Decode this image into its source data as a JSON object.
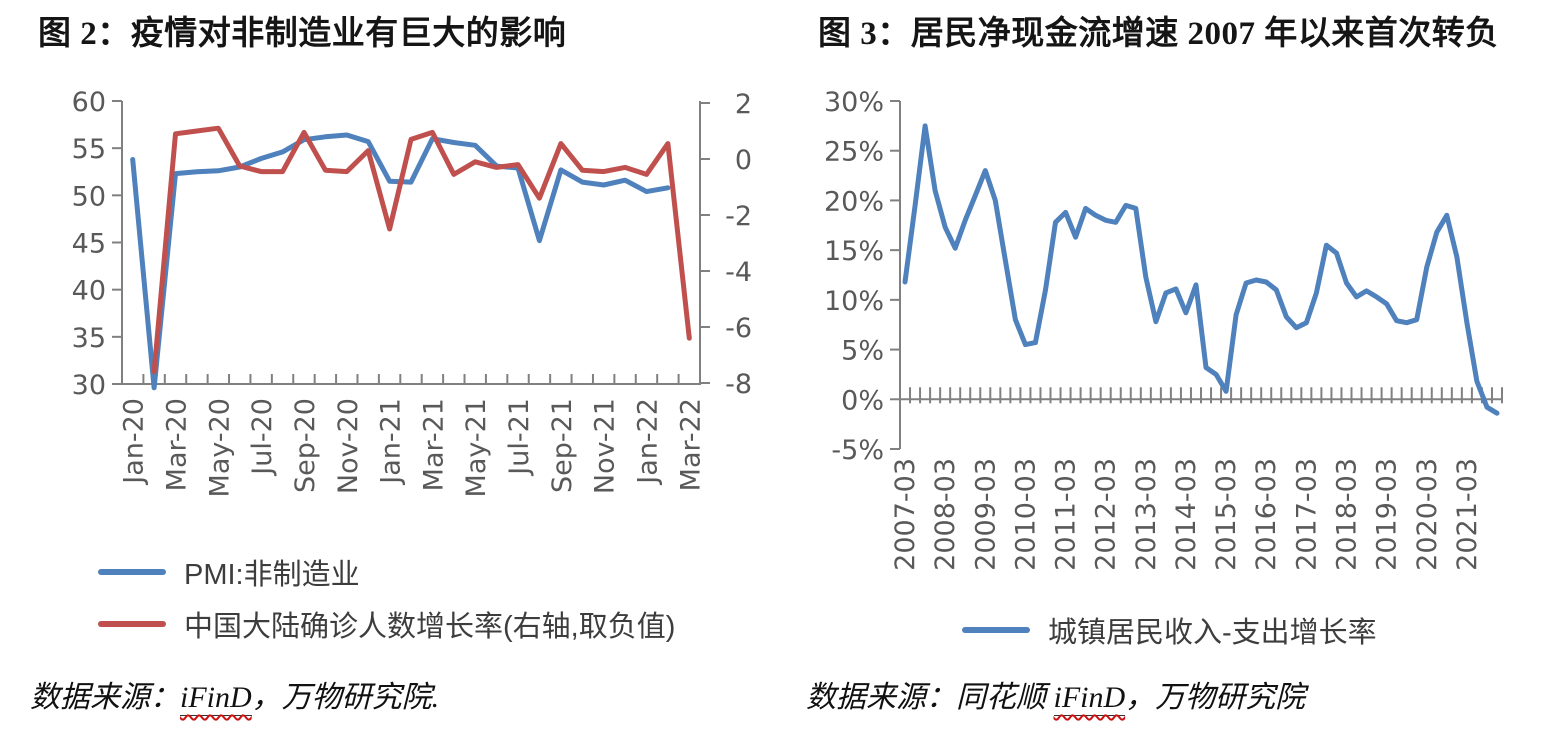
{
  "accent_colors": {
    "blue": "#4F81BD",
    "red": "#C0504D",
    "axis_gray": "#808080",
    "tick_text_gray": "#595959",
    "spellcheck_underline": "#cc1111"
  },
  "chart_data": [
    {
      "type": "line",
      "title": "图 2：疫情对非制造业有巨大的影响",
      "categories": [
        "Jan-20",
        "Feb-20",
        "Mar-20",
        "Apr-20",
        "May-20",
        "Jun-20",
        "Jul-20",
        "Aug-20",
        "Sep-20",
        "Oct-20",
        "Nov-20",
        "Dec-20",
        "Jan-21",
        "Feb-21",
        "Mar-21",
        "Apr-21",
        "May-21",
        "Jun-21",
        "Jul-21",
        "Aug-21",
        "Sep-21",
        "Oct-21",
        "Nov-21",
        "Dec-21",
        "Jan-22",
        "Feb-22",
        "Mar-22"
      ],
      "x_tick_labels": [
        "Jan-20",
        "Mar-20",
        "May-20",
        "Jul-20",
        "Sep-20",
        "Nov-20",
        "Jan-21",
        "Mar-21",
        "May-21",
        "Jul-21",
        "Sep-21",
        "Nov-21",
        "Jan-22",
        "Mar-22"
      ],
      "left_axis": {
        "min": 30,
        "max": 60,
        "tick_values": [
          60,
          55,
          50,
          45,
          40,
          35,
          30
        ],
        "tick_labels": [
          "60",
          "55",
          "50",
          "45",
          "40",
          "35",
          "30"
        ]
      },
      "right_axis": {
        "min": -8,
        "max": 2,
        "tick_values": [
          2,
          0,
          -2,
          -4,
          -6,
          -8
        ],
        "tick_labels": [
          "2",
          "0",
          "-2",
          "-4",
          "-6",
          "-8"
        ]
      },
      "grid": false,
      "legend_position": "bottom-left",
      "series": [
        {
          "name": "PMI:非制造业",
          "axis": "left",
          "color": "#4F81BD",
          "values": [
            53.8,
            29.6,
            52.3,
            52.5,
            52.6,
            53.0,
            53.9,
            54.6,
            55.9,
            56.2,
            56.4,
            55.7,
            51.5,
            51.4,
            56.0,
            55.6,
            55.3,
            53.1,
            52.9,
            45.2,
            52.7,
            51.4,
            51.1,
            51.6,
            50.4,
            50.8,
            null
          ]
        },
        {
          "name": "中国大陆确诊人数增长率(右轴,取负值)",
          "axis": "right",
          "color": "#C0504D",
          "values": [
            null,
            -7.6,
            0.9,
            1.0,
            1.1,
            -0.25,
            -0.45,
            -0.45,
            0.95,
            -0.4,
            -0.45,
            0.3,
            -2.5,
            0.7,
            0.95,
            -0.55,
            -0.1,
            -0.3,
            -0.2,
            -1.4,
            0.55,
            -0.4,
            -0.45,
            -0.3,
            -0.55,
            0.55,
            -6.4
          ]
        }
      ],
      "source": {
        "prefix": "数据来源：",
        "brand": "iFinD",
        "suffix": "，万物研究院."
      }
    },
    {
      "type": "line",
      "title": "图 3：居民净现金流增速 2007 年以来首次转负",
      "categories": [
        "2007-03",
        "2007-06",
        "2007-09",
        "2007-12",
        "2008-03",
        "2008-06",
        "2008-09",
        "2008-12",
        "2009-03",
        "2009-06",
        "2009-09",
        "2009-12",
        "2010-03",
        "2010-06",
        "2010-09",
        "2010-12",
        "2011-03",
        "2011-06",
        "2011-09",
        "2011-12",
        "2012-03",
        "2012-06",
        "2012-09",
        "2012-12",
        "2013-03",
        "2013-06",
        "2013-09",
        "2013-12",
        "2014-03",
        "2014-06",
        "2014-09",
        "2014-12",
        "2015-03",
        "2015-06",
        "2015-09",
        "2015-12",
        "2016-03",
        "2016-06",
        "2016-09",
        "2016-12",
        "2017-03",
        "2017-06",
        "2017-09",
        "2017-12",
        "2018-03",
        "2018-06",
        "2018-09",
        "2018-12",
        "2019-03",
        "2019-06",
        "2019-09",
        "2019-12",
        "2020-03",
        "2020-06",
        "2020-09",
        "2020-12",
        "2021-03",
        "2021-06",
        "2021-09",
        "2021-12"
      ],
      "x_tick_labels": [
        "2007-03",
        "2008-03",
        "2009-03",
        "2010-03",
        "2011-03",
        "2012-03",
        "2013-03",
        "2014-03",
        "2015-03",
        "2016-03",
        "2017-03",
        "2018-03",
        "2019-03",
        "2020-03",
        "2021-03"
      ],
      "left_axis": {
        "min": -5,
        "max": 30,
        "tick_values": [
          30,
          25,
          20,
          15,
          10,
          5,
          0,
          -5
        ],
        "tick_labels": [
          "30%",
          "25%",
          "20%",
          "15%",
          "10%",
          "5%",
          "0%",
          "-5%"
        ]
      },
      "grid": false,
      "legend_position": "bottom-center",
      "series": [
        {
          "name": "城镇居民收入-支出增长率",
          "axis": "left",
          "color": "#4F81BD",
          "values": [
            11.8,
            19.5,
            27.5,
            21.0,
            17.3,
            15.2,
            18.0,
            20.5,
            23.0,
            20.0,
            14.0,
            8.0,
            5.5,
            5.7,
            11.0,
            17.8,
            18.8,
            16.3,
            19.2,
            18.5,
            18.0,
            17.8,
            19.5,
            19.2,
            12.3,
            7.8,
            10.7,
            11.1,
            8.7,
            11.5,
            3.2,
            2.5,
            0.8,
            8.5,
            11.7,
            12.0,
            11.8,
            11.0,
            8.3,
            7.2,
            7.7,
            10.7,
            15.5,
            14.7,
            11.7,
            10.3,
            10.9,
            10.3,
            9.6,
            7.9,
            7.7,
            8.0,
            13.3,
            16.8,
            18.5,
            14.3,
            7.7,
            1.8,
            -0.8,
            -1.4
          ]
        }
      ],
      "source": {
        "prefix": "数据来源：同花顺 ",
        "brand": "iFinD",
        "suffix": "，万物研究院"
      }
    }
  ]
}
